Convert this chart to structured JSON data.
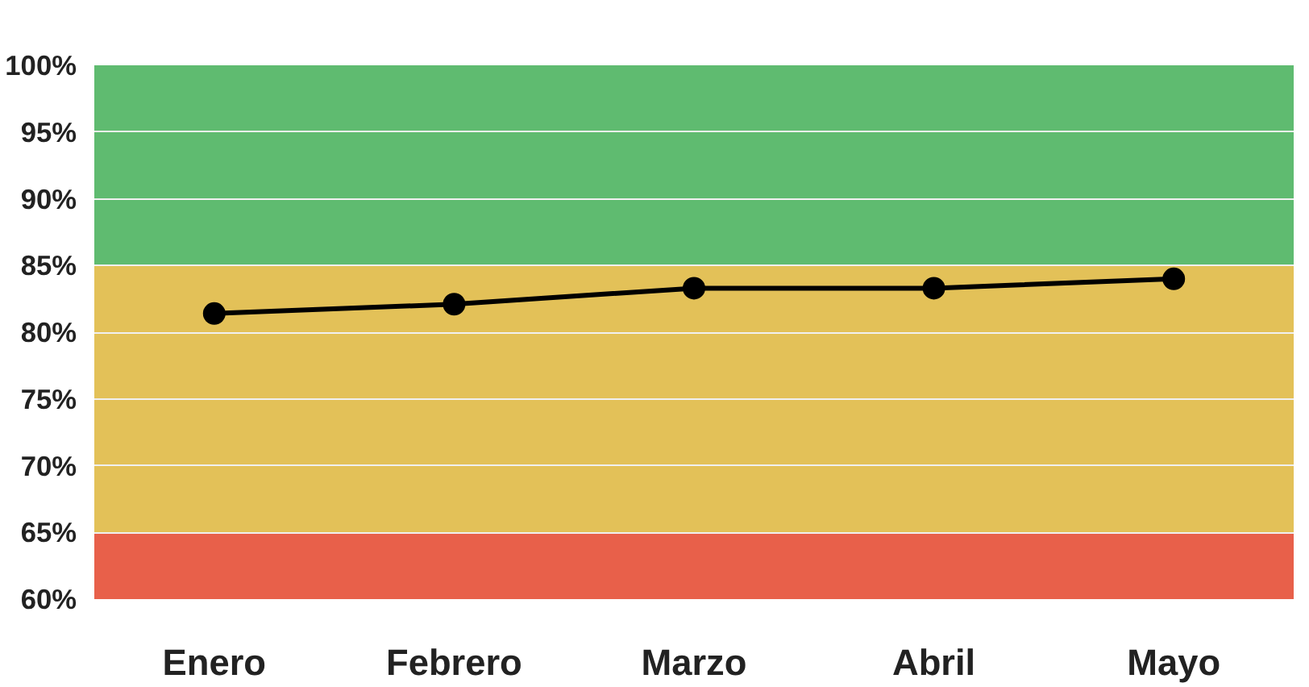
{
  "chart_data": {
    "type": "line",
    "categories": [
      "Enero",
      "Febrero",
      "Marzo",
      "Abril",
      "Mayo"
    ],
    "series": [
      {
        "color": "#000000",
        "values": [
          81.4,
          82.1,
          83.3,
          83.3,
          84.0
        ]
      }
    ],
    "ylim": [
      60,
      100
    ],
    "yticks": [
      {
        "value": 60,
        "label": "60%"
      },
      {
        "value": 65,
        "label": "65%"
      },
      {
        "value": 70,
        "label": "70%"
      },
      {
        "value": 75,
        "label": "75%"
      },
      {
        "value": 80,
        "label": "80%"
      },
      {
        "value": 85,
        "label": "85%"
      },
      {
        "value": 90,
        "label": "90%"
      },
      {
        "value": 95,
        "label": "95%"
      },
      {
        "value": 100,
        "label": "100%"
      }
    ],
    "bands": [
      {
        "axis": "y",
        "from": 60,
        "to": 65,
        "color": "#e8604a"
      },
      {
        "axis": "y",
        "from": 65,
        "to": 85,
        "color": "#e3c158"
      },
      {
        "axis": "y",
        "from": 85,
        "to": 100,
        "color": "#5fbb70"
      }
    ],
    "grid": "y",
    "marker": "circle",
    "line_style": "solid"
  }
}
